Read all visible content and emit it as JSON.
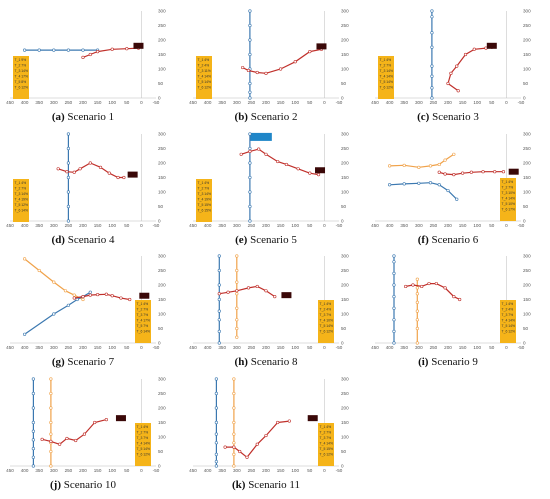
{
  "figure": {
    "axis": {
      "xlim": [
        450,
        -50
      ],
      "ylim": [
        0,
        300
      ],
      "xticks": [
        450,
        400,
        350,
        300,
        250,
        200,
        150,
        100,
        50,
        0,
        -50
      ],
      "yticks": [
        0,
        50,
        100,
        150,
        200,
        250,
        300
      ]
    },
    "colors": {
      "ego": "#c0302b",
      "blue": "#3b78b0",
      "orange": "#f0a24a",
      "legend_bg": "#f5b419",
      "marker_box": "#3a0808",
      "bar": "#1f86c8"
    }
  },
  "chart_data": [
    {
      "type": "line",
      "caption_label": "(a)",
      "caption_text": " Scenario 1",
      "legend": [
        "T_1 9%",
        "T_2 7%",
        "T_3 14%",
        "T_4 17%",
        "T_5 8%",
        "T_6 12%"
      ],
      "series": [
        {
          "name": "",
          "color": "blue",
          "x": [
            400,
            350,
            300,
            250,
            200,
            150
          ],
          "y": [
            165,
            165,
            165,
            165,
            165,
            165
          ]
        },
        {
          "name": "",
          "color": "ego",
          "x": [
            200,
            175,
            150,
            100,
            50,
            10
          ],
          "y": [
            140,
            150,
            160,
            168,
            170,
            172
          ]
        }
      ],
      "marker": {
        "x": 10,
        "y": 180
      }
    },
    {
      "type": "line",
      "caption_label": "(b)",
      "caption_text": " Scenario 2",
      "legend": [
        "T_1 4%",
        "T_2 4%",
        "T_3 11%",
        "T_4 14%",
        "T_5 14%",
        "T_6 12%"
      ],
      "series": [
        {
          "name": "",
          "color": "blue",
          "x": [
            255,
            255,
            255,
            255,
            255,
            255,
            255,
            255
          ],
          "y": [
            300,
            250,
            200,
            150,
            100,
            50,
            20,
            0
          ]
        },
        {
          "name": "",
          "color": "ego",
          "x": [
            280,
            260,
            230,
            200,
            150,
            100,
            50,
            10
          ],
          "y": [
            105,
            95,
            88,
            85,
            100,
            125,
            160,
            168
          ]
        }
      ],
      "marker": {
        "x": 10,
        "y": 178
      }
    },
    {
      "type": "line",
      "caption_label": "(c)",
      "caption_text": " Scenario 3",
      "legend": [
        "T_1 4%",
        "T_2 7%",
        "T_3 14%",
        "T_4 14%",
        "T_5 14%",
        "T_6 12%"
      ],
      "series": [
        {
          "name": "",
          "color": "blue",
          "x": [
            255,
            255,
            255,
            255,
            255,
            255,
            255,
            255
          ],
          "y": [
            300,
            280,
            225,
            175,
            110,
            75,
            35,
            0
          ]
        },
        {
          "name": "",
          "color": "ego",
          "x": [
            165,
            200,
            190,
            170,
            140,
            110,
            70,
            50
          ],
          "y": [
            25,
            50,
            85,
            110,
            150,
            168,
            172,
            175
          ]
        }
      ],
      "marker": {
        "x": 50,
        "y": 180
      }
    },
    {
      "type": "line",
      "caption_label": "(d)",
      "caption_text": " Scenario 4",
      "legend": [
        "T_1 4%",
        "T_2 7%",
        "T_3 14%",
        "T_4 19%",
        "T_5 12%",
        "T_6 14%"
      ],
      "series": [
        {
          "name": "",
          "color": "blue",
          "x": [
            250,
            250,
            250,
            250,
            250,
            250,
            250
          ],
          "y": [
            300,
            250,
            200,
            150,
            100,
            50,
            0
          ]
        },
        {
          "name": "",
          "color": "ego",
          "x": [
            285,
            255,
            230,
            210,
            175,
            140,
            110,
            80,
            60
          ],
          "y": [
            180,
            170,
            168,
            180,
            200,
            185,
            165,
            150,
            150
          ]
        }
      ],
      "marker": {
        "x": 30,
        "y": 160
      }
    },
    {
      "type": "line",
      "caption_label": "(e)",
      "caption_text": " Scenario 5",
      "legend": [
        "T_1 4%",
        "T_2 7%",
        "T_3 14%",
        "T_4 19%",
        "T_5 15%",
        "T_6 15%"
      ],
      "series": [
        {
          "name": "",
          "color": "blue",
          "x": [
            255,
            255,
            255,
            255,
            255,
            255,
            255
          ],
          "y": [
            300,
            250,
            200,
            150,
            100,
            50,
            0
          ]
        },
        {
          "name": "",
          "color": "ego",
          "x": [
            285,
            255,
            225,
            200,
            160,
            130,
            90,
            50,
            20
          ],
          "y": [
            230,
            240,
            248,
            230,
            205,
            195,
            180,
            165,
            160
          ]
        }
      ],
      "marker": {
        "x": 15,
        "y": 175
      },
      "bar": {
        "x0": 255,
        "x1": 180,
        "y": 290
      }
    },
    {
      "type": "line",
      "caption_label": "(f)",
      "caption_text": " Scenario 6",
      "legend": [
        "T_1 4%",
        "T_2 7%",
        "T_3 10%",
        "T_4 14%",
        "T_5 10%",
        "T_6 17%"
      ],
      "series": [
        {
          "name": "",
          "color": "orange",
          "x": [
            400,
            350,
            300,
            260,
            230,
            210,
            180
          ],
          "y": [
            190,
            192,
            185,
            190,
            195,
            210,
            230
          ]
        },
        {
          "name": "",
          "color": "blue",
          "x": [
            400,
            350,
            300,
            260,
            230,
            200,
            170
          ],
          "y": [
            125,
            128,
            130,
            132,
            125,
            105,
            75
          ]
        },
        {
          "name": "",
          "color": "ego",
          "x": [
            230,
            210,
            180,
            150,
            120,
            80,
            40,
            10
          ],
          "y": [
            168,
            162,
            160,
            165,
            168,
            170,
            170,
            170
          ]
        }
      ],
      "marker": {
        "x": -25,
        "y": 170
      }
    },
    {
      "type": "line",
      "caption_label": "(g)",
      "caption_text": " Scenario 7",
      "legend": [
        "T_1 4%",
        "T_2 7%",
        "T_3 7%",
        "T_4 17%",
        "T_5 7%",
        "T_6 14%"
      ],
      "series": [
        {
          "name": "",
          "color": "orange",
          "x": [
            400,
            350,
            300,
            260,
            230,
            200
          ],
          "y": [
            290,
            250,
            210,
            180,
            165,
            150
          ]
        },
        {
          "name": "",
          "color": "blue",
          "x": [
            400,
            300,
            250,
            220,
            200,
            175
          ],
          "y": [
            30,
            100,
            130,
            150,
            160,
            175
          ]
        },
        {
          "name": "",
          "color": "ego",
          "x": [
            230,
            200,
            175,
            150,
            120,
            100,
            70,
            40
          ],
          "y": [
            155,
            160,
            165,
            167,
            168,
            163,
            155,
            150
          ]
        }
      ],
      "marker": {
        "x": -10,
        "y": 163
      }
    },
    {
      "type": "line",
      "caption_label": "(h)",
      "caption_text": " Scenario 8",
      "legend": [
        "T_1 4%",
        "T_2 4%",
        "T_3 7%",
        "T_4 10%",
        "T_5 14%",
        "T_6 12%"
      ],
      "series": [
        {
          "name": "",
          "color": "blue",
          "x": [
            360,
            360,
            360,
            360,
            360,
            360,
            360,
            360
          ],
          "y": [
            300,
            250,
            200,
            150,
            110,
            80,
            40,
            0
          ]
        },
        {
          "name": "",
          "color": "orange",
          "x": [
            300,
            300,
            300,
            300,
            300,
            300,
            300,
            300
          ],
          "y": [
            300,
            250,
            210,
            170,
            120,
            80,
            50,
            20
          ]
        },
        {
          "name": "",
          "color": "ego",
          "x": [
            360,
            330,
            300,
            260,
            230,
            200,
            170
          ],
          "y": [
            170,
            175,
            180,
            190,
            195,
            180,
            160
          ]
        }
      ],
      "marker": {
        "x": 130,
        "y": 165
      }
    },
    {
      "type": "line",
      "caption_label": "(i)",
      "caption_text": " Scenario 9",
      "legend": [
        "T_1 4%",
        "T_2 4%",
        "T_3 7%",
        "T_4 14%",
        "T_5 14%",
        "T_6 12%"
      ],
      "series": [
        {
          "name": "",
          "color": "blue",
          "x": [
            385,
            385,
            385,
            385,
            385,
            385,
            385,
            385,
            385
          ],
          "y": [
            300,
            280,
            240,
            200,
            160,
            120,
            80,
            40,
            0
          ]
        },
        {
          "name": "",
          "color": "orange",
          "x": [
            305,
            305,
            305,
            305,
            305,
            305,
            305,
            305
          ],
          "y": [
            220,
            190,
            170,
            140,
            110,
            80,
            50,
            0
          ]
        },
        {
          "name": "",
          "color": "ego",
          "x": [
            345,
            320,
            290,
            265,
            240,
            210,
            180,
            160
          ],
          "y": [
            195,
            200,
            195,
            205,
            205,
            190,
            160,
            150
          ]
        }
      ],
      "marker": {
        "x": 0,
        "y": 0,
        "hidden": true
      }
    },
    {
      "type": "line",
      "caption_label": "(j)",
      "caption_text": " Scenario 10",
      "legend": [
        "T_1 4%",
        "T_2 7%",
        "T_3 7%",
        "T_4 14%",
        "T_5 14%",
        "T_6 12%"
      ],
      "series": [
        {
          "name": "",
          "color": "blue",
          "x": [
            370,
            370,
            370,
            370,
            370,
            370,
            370,
            370,
            370
          ],
          "y": [
            300,
            250,
            200,
            150,
            120,
            90,
            60,
            30,
            0
          ]
        },
        {
          "name": "",
          "color": "orange",
          "x": [
            310,
            310,
            310,
            310,
            310,
            310,
            310,
            310
          ],
          "y": [
            300,
            250,
            200,
            150,
            110,
            80,
            50,
            0
          ]
        },
        {
          "name": "",
          "color": "ego",
          "x": [
            340,
            310,
            280,
            255,
            225,
            195,
            160,
            120
          ],
          "y": [
            92,
            85,
            75,
            95,
            88,
            110,
            150,
            160
          ]
        }
      ],
      "marker": {
        "x": 70,
        "y": 165
      }
    },
    {
      "type": "line",
      "caption_label": "(k)",
      "caption_text": " Scenario 11",
      "legend": [
        "T_1 4%",
        "T_2 7%",
        "T_3 7%",
        "T_4 14%",
        "T_5 15%",
        "T_6 12%"
      ],
      "series": [
        {
          "name": "",
          "color": "blue",
          "x": [
            370,
            370,
            370,
            370,
            370,
            370,
            370,
            370,
            370
          ],
          "y": [
            300,
            250,
            200,
            150,
            110,
            80,
            40,
            15,
            0
          ]
        },
        {
          "name": "",
          "color": "orange",
          "x": [
            310,
            310,
            310,
            310,
            310,
            310,
            310,
            310
          ],
          "y": [
            300,
            250,
            200,
            150,
            110,
            80,
            40,
            0
          ]
        },
        {
          "name": "",
          "color": "ego",
          "x": [
            340,
            310,
            290,
            265,
            230,
            200,
            160,
            120
          ],
          "y": [
            65,
            65,
            50,
            30,
            75,
            105,
            150,
            155
          ]
        }
      ],
      "marker": {
        "x": 40,
        "y": 165
      }
    }
  ]
}
